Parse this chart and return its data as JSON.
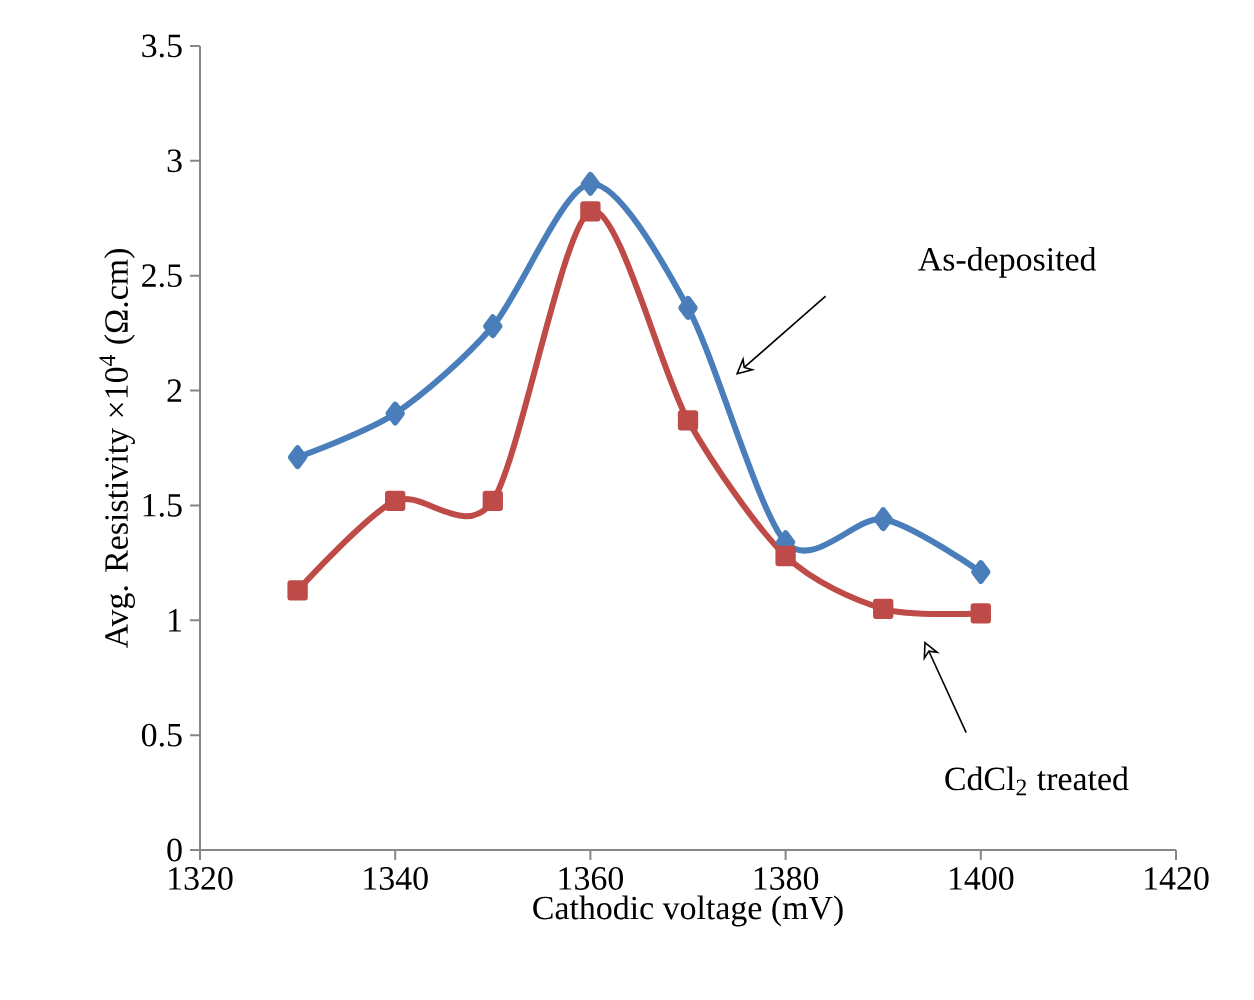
{
  "chart_data": {
    "type": "line",
    "xlabel": "Cathodic voltage (mV)",
    "ylabel": "Avg. Resistivity ×10$^{4}$  (Ω.cm)",
    "x": [
      1330,
      1340,
      1350,
      1360,
      1370,
      1380,
      1390,
      1400
    ],
    "series": [
      {
        "color": "#4a7ebb",
        "marker": "diamond",
        "values": [
          1.71,
          1.9,
          2.28,
          2.9,
          2.36,
          1.34,
          1.44,
          1.21
        ]
      },
      {
        "color": "#be4b48",
        "marker": "square",
        "values": [
          1.13,
          1.52,
          1.52,
          2.78,
          1.87,
          1.28,
          1.05,
          1.03
        ]
      }
    ],
    "annotations": [
      "As-deposited",
      "CdCl$_{2}$ treated"
    ],
    "xlim": [
      1320,
      1420
    ],
    "xticks": [
      1320,
      1340,
      1360,
      1380,
      1400,
      1420
    ],
    "ylim": [
      0,
      3.5
    ],
    "yticks": [
      0,
      0.5,
      1,
      1.5,
      2,
      2.5,
      3,
      3.5
    ],
    "grid": false
  }
}
